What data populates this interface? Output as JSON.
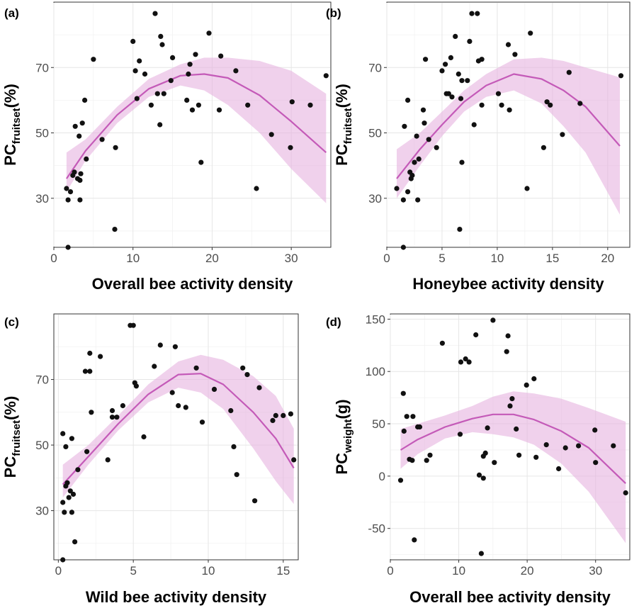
{
  "chart_data": [
    {
      "type": "scatter",
      "panel_label": "(a)",
      "xlabel": "Overall bee activity density",
      "ylabel_main": "PC",
      "ylabel_sub": "fruitset",
      "ylabel_suffix": "(%)",
      "xlim": [
        0,
        35
      ],
      "ylim": [
        15,
        90
      ],
      "x_ticks": [
        0,
        10,
        20,
        30
      ],
      "y_ticks": [
        30,
        50,
        70
      ],
      "points": [
        [
          1.6,
          33
        ],
        [
          1.8,
          29.5
        ],
        [
          2.1,
          32
        ],
        [
          2.4,
          37
        ],
        [
          2.6,
          38
        ],
        [
          3.0,
          36
        ],
        [
          3.3,
          35.5
        ],
        [
          3.4,
          37.5
        ],
        [
          3.6,
          53
        ],
        [
          3.9,
          60
        ],
        [
          4.1,
          42
        ],
        [
          1.8,
          15
        ],
        [
          2.7,
          52
        ],
        [
          3.2,
          49
        ],
        [
          3.3,
          29.5
        ],
        [
          5.0,
          72.5
        ],
        [
          6.1,
          48
        ],
        [
          7.8,
          45.5
        ],
        [
          7.7,
          20.5
        ],
        [
          10.0,
          78
        ],
        [
          10.3,
          69
        ],
        [
          10.5,
          60.5
        ],
        [
          10.8,
          72
        ],
        [
          11.5,
          68
        ],
        [
          12.3,
          58.5
        ],
        [
          12.8,
          86.5
        ],
        [
          13.1,
          62
        ],
        [
          13.4,
          52.5
        ],
        [
          13.5,
          79.5
        ],
        [
          13.7,
          77
        ],
        [
          13.9,
          62
        ],
        [
          14.8,
          66
        ],
        [
          15.0,
          73
        ],
        [
          16.8,
          60
        ],
        [
          17.0,
          68
        ],
        [
          17.2,
          71
        ],
        [
          17.5,
          57
        ],
        [
          18.3,
          58.5
        ],
        [
          18.6,
          41
        ],
        [
          17.9,
          74
        ],
        [
          19.6,
          80.5
        ],
        [
          20.9,
          57
        ],
        [
          21.1,
          73.5
        ],
        [
          23.0,
          69
        ],
        [
          24.5,
          58.5
        ],
        [
          25.6,
          33
        ],
        [
          27.5,
          49.5
        ],
        [
          30.1,
          59.5
        ],
        [
          29.9,
          45.5
        ],
        [
          32.4,
          58.5
        ],
        [
          34.4,
          67.5
        ]
      ],
      "fit": {
        "x": [
          1.6,
          4,
          8,
          12,
          16,
          19,
          22,
          26,
          30,
          34.4
        ],
        "y": [
          36,
          44.5,
          55.5,
          63.5,
          67.5,
          68,
          66.8,
          61.5,
          53.5,
          44
        ],
        "lower": [
          32,
          41.5,
          53,
          61,
          64.5,
          63,
          58.5,
          50,
          39,
          28.5
        ],
        "upper": [
          44,
          48,
          58,
          66.5,
          71,
          73,
          73,
          72,
          69,
          62
        ]
      }
    },
    {
      "type": "scatter",
      "panel_label": "(b)",
      "xlabel": "Honeybee activity density",
      "ylabel_main": "PC",
      "ylabel_sub": "fruitset",
      "ylabel_suffix": "(%)",
      "xlim": [
        0,
        22
      ],
      "ylim": [
        15,
        90
      ],
      "x_ticks": [
        0,
        5,
        10,
        15,
        20
      ],
      "y_ticks": [
        30,
        50,
        70
      ],
      "points": [
        [
          0.9,
          33
        ],
        [
          1.5,
          29.5
        ],
        [
          1.6,
          52
        ],
        [
          1.9,
          60
        ],
        [
          1.9,
          32
        ],
        [
          2.1,
          38
        ],
        [
          2.2,
          36
        ],
        [
          2.3,
          37
        ],
        [
          2.5,
          41
        ],
        [
          2.7,
          49
        ],
        [
          2.9,
          42
        ],
        [
          1.5,
          15
        ],
        [
          2.8,
          29.5
        ],
        [
          3.4,
          53
        ],
        [
          3.5,
          72.5
        ],
        [
          3.3,
          57
        ],
        [
          3.8,
          48
        ],
        [
          4.5,
          45.5
        ],
        [
          5.0,
          69
        ],
        [
          5.3,
          71
        ],
        [
          5.4,
          62
        ],
        [
          5.6,
          62
        ],
        [
          5.8,
          73
        ],
        [
          5.9,
          61
        ],
        [
          6.2,
          79.5
        ],
        [
          6.5,
          68
        ],
        [
          6.8,
          66
        ],
        [
          6.7,
          60.5
        ],
        [
          6.6,
          20.5
        ],
        [
          6.8,
          41
        ],
        [
          7.3,
          66
        ],
        [
          7.5,
          78
        ],
        [
          7.7,
          86.5
        ],
        [
          7.9,
          52.5
        ],
        [
          8.2,
          86.5
        ],
        [
          8.3,
          72
        ],
        [
          8.6,
          72.5
        ],
        [
          8.6,
          58.5
        ],
        [
          10.1,
          62
        ],
        [
          10.4,
          58.5
        ],
        [
          11.0,
          77
        ],
        [
          11.1,
          57
        ],
        [
          11.6,
          74
        ],
        [
          12.7,
          33
        ],
        [
          13.0,
          80.5
        ],
        [
          14.2,
          45.5
        ],
        [
          14.5,
          59.5
        ],
        [
          14.8,
          58.5
        ],
        [
          15.9,
          49.5
        ],
        [
          16.5,
          68.5
        ],
        [
          17.5,
          59
        ],
        [
          21.2,
          67.5
        ]
      ],
      "fit": {
        "x": [
          0.9,
          3,
          5,
          7,
          9,
          11.5,
          14,
          16,
          18,
          21.1
        ],
        "y": [
          36,
          45,
          52.5,
          59.5,
          64.5,
          68,
          66.5,
          63,
          58,
          46
        ],
        "lower": [
          30,
          40,
          49,
          56.5,
          61,
          63,
          59,
          52,
          44,
          25
        ],
        "upper": [
          45,
          50,
          56.5,
          63,
          68,
          72.5,
          73,
          72,
          70,
          67
        ]
      }
    },
    {
      "type": "scatter",
      "panel_label": "(c)",
      "xlabel": "Wild bee activity density",
      "ylabel_main": "PC",
      "ylabel_sub": "fruitset",
      "ylabel_suffix": "(%)",
      "xlim": [
        -0.3,
        16
      ],
      "ylim": [
        15,
        90
      ],
      "x_ticks": [
        0,
        5,
        10,
        15
      ],
      "y_ticks": [
        30,
        50,
        70
      ],
      "points": [
        [
          0.3,
          53.5
        ],
        [
          0.3,
          32.5
        ],
        [
          0.4,
          29.5
        ],
        [
          0.5,
          37.5
        ],
        [
          0.6,
          38.5
        ],
        [
          0.7,
          34
        ],
        [
          0.8,
          36
        ],
        [
          0.9,
          52
        ],
        [
          0.9,
          29.5
        ],
        [
          1.0,
          35
        ],
        [
          0.3,
          15
        ],
        [
          0.5,
          49.5
        ],
        [
          1.1,
          20.5
        ],
        [
          1.3,
          42.5
        ],
        [
          1.8,
          72.5
        ],
        [
          1.9,
          48
        ],
        [
          2.1,
          72.5
        ],
        [
          2.1,
          78
        ],
        [
          2.2,
          60
        ],
        [
          2.8,
          77
        ],
        [
          3.3,
          45.5
        ],
        [
          3.6,
          58.5
        ],
        [
          3.6,
          60.5
        ],
        [
          3.9,
          58.5
        ],
        [
          4.3,
          62
        ],
        [
          4.8,
          86.5
        ],
        [
          5.0,
          86.5
        ],
        [
          5.1,
          69
        ],
        [
          5.2,
          68
        ],
        [
          5.7,
          52.5
        ],
        [
          6.4,
          74
        ],
        [
          6.8,
          80.5
        ],
        [
          7.6,
          66
        ],
        [
          7.8,
          80
        ],
        [
          8.0,
          62
        ],
        [
          8.5,
          61.5
        ],
        [
          9.2,
          73.5
        ],
        [
          9.6,
          57
        ],
        [
          10.4,
          67
        ],
        [
          11.5,
          60.5
        ],
        [
          11.7,
          49.5
        ],
        [
          11.9,
          41
        ],
        [
          12.3,
          73.5
        ],
        [
          12.6,
          71.5
        ],
        [
          13.1,
          33
        ],
        [
          13.4,
          67.5
        ],
        [
          14.3,
          57.5
        ],
        [
          14.5,
          59
        ],
        [
          15.0,
          59
        ],
        [
          15.5,
          59.5
        ],
        [
          15.7,
          45.5
        ]
      ],
      "fit": {
        "x": [
          0.3,
          2,
          4,
          6,
          8,
          9.5,
          11,
          13,
          14.5,
          15.7
        ],
        "y": [
          38,
          46.5,
          56.5,
          65.5,
          71.5,
          71.8,
          68.5,
          60,
          52,
          43
        ],
        "lower": [
          34,
          44,
          54.5,
          63,
          67.5,
          66,
          61,
          49,
          39,
          32
        ],
        "upper": [
          44,
          50,
          59,
          68.5,
          75.5,
          77.5,
          76,
          71,
          65,
          55
        ]
      }
    },
    {
      "type": "scatter",
      "panel_label": "(d)",
      "xlabel": "Overall bee activity density",
      "ylabel_main": "PC",
      "ylabel_sub": "weight",
      "ylabel_suffix": "(g)",
      "xlim": [
        0,
        35
      ],
      "ylim": [
        -80,
        155
      ],
      "x_ticks": [
        0,
        10,
        20,
        30
      ],
      "y_ticks": [
        -50,
        0,
        50,
        100,
        150
      ],
      "points": [
        [
          1.5,
          -4
        ],
        [
          1.9,
          79
        ],
        [
          2.0,
          43
        ],
        [
          2.4,
          57
        ],
        [
          2.8,
          16
        ],
        [
          3.2,
          15
        ],
        [
          3.3,
          57
        ],
        [
          3.5,
          -61
        ],
        [
          4.0,
          47
        ],
        [
          4.3,
          47
        ],
        [
          5.3,
          15
        ],
        [
          5.8,
          20
        ],
        [
          7.6,
          127
        ],
        [
          10.2,
          40
        ],
        [
          10.3,
          109
        ],
        [
          11.0,
          112
        ],
        [
          11.5,
          109
        ],
        [
          12.5,
          135
        ],
        [
          13.0,
          1
        ],
        [
          13.3,
          -74
        ],
        [
          13.6,
          -2
        ],
        [
          13.6,
          19
        ],
        [
          13.9,
          22
        ],
        [
          14.2,
          46
        ],
        [
          15.0,
          149
        ],
        [
          15.2,
          13
        ],
        [
          17.0,
          119
        ],
        [
          17.2,
          134
        ],
        [
          17.5,
          67
        ],
        [
          17.8,
          74
        ],
        [
          18.4,
          45
        ],
        [
          18.8,
          20
        ],
        [
          19.9,
          87
        ],
        [
          21.0,
          93
        ],
        [
          21.3,
          18
        ],
        [
          22.8,
          30
        ],
        [
          24.6,
          7
        ],
        [
          25.6,
          27
        ],
        [
          27.5,
          29
        ],
        [
          29.9,
          44
        ],
        [
          30.0,
          13
        ],
        [
          32.6,
          29
        ],
        [
          34.4,
          -16
        ]
      ],
      "fit": {
        "x": [
          1.5,
          4,
          8,
          12,
          15,
          18,
          21,
          25,
          29,
          34.4
        ],
        "y": [
          25,
          35,
          47,
          55,
          59,
          59,
          54,
          43,
          27,
          -7
        ],
        "lower": [
          7,
          21,
          36,
          42,
          40,
          37,
          30,
          12,
          -15,
          -64
        ],
        "upper": [
          45,
          50,
          58,
          67,
          76,
          81,
          79,
          74,
          65,
          52
        ]
      }
    }
  ]
}
